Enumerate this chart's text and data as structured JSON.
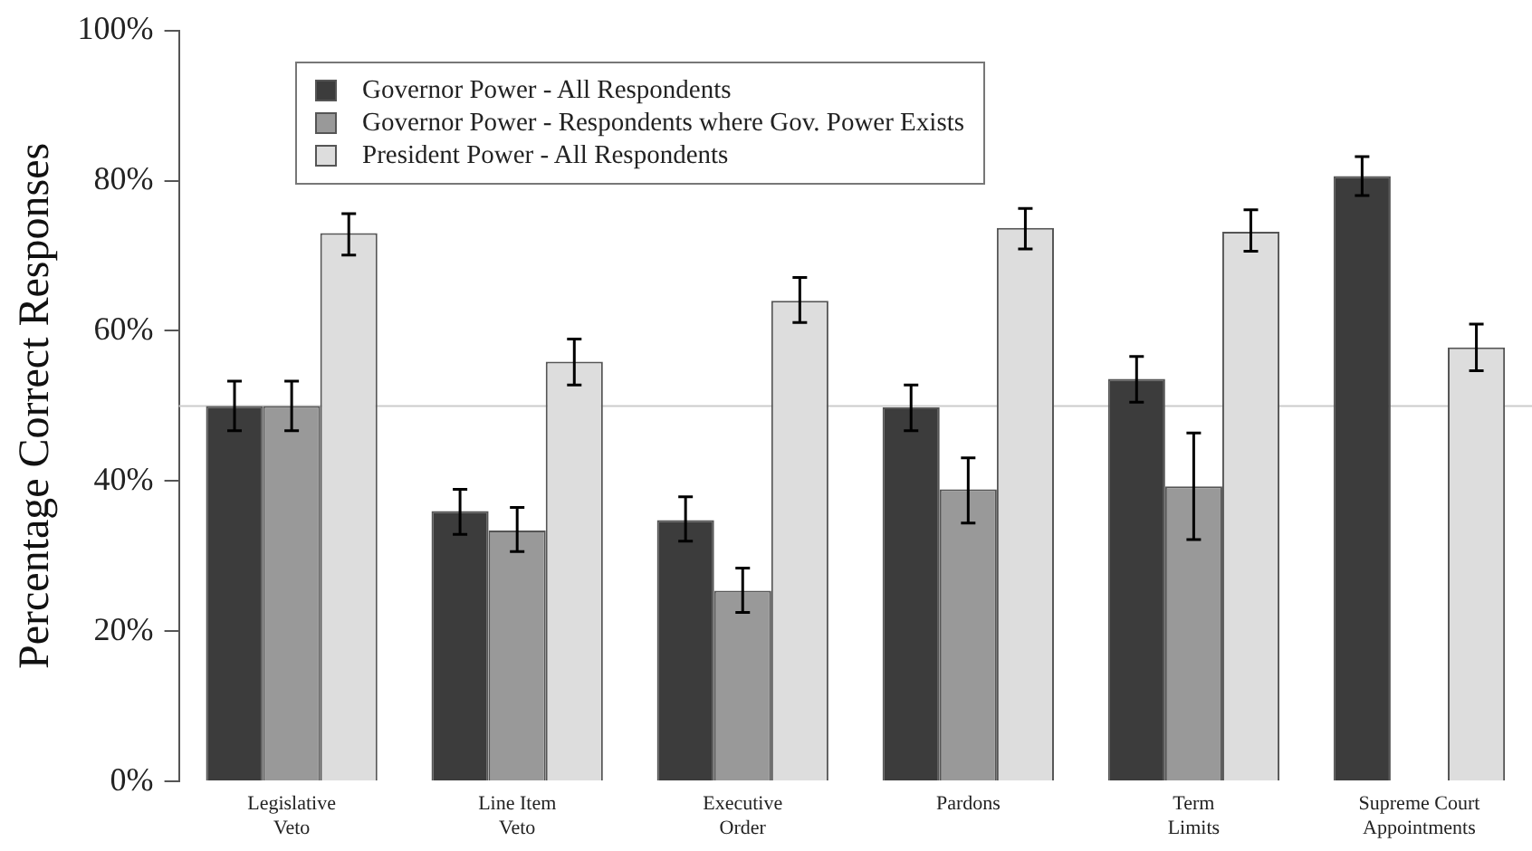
{
  "chart_data": {
    "type": "bar",
    "ylabel": "Percentage Correct Responses",
    "categories": [
      "Legislative Veto",
      "Line Item Veto",
      "Executive Order",
      "Pardons",
      "Term Limits",
      "Supreme Court Appointments"
    ],
    "series": [
      {
        "name": "Governor Power - All Respondents",
        "color": "#3c3c3c",
        "values": [
          50.0,
          36.0,
          34.8,
          49.8,
          53.6,
          80.6
        ],
        "errors": [
          [
            46.7,
            53.3
          ],
          [
            32.9,
            38.9
          ],
          [
            32.0,
            37.9
          ],
          [
            46.7,
            52.8
          ],
          [
            50.5,
            56.6
          ],
          [
            78.0,
            83.2
          ]
        ]
      },
      {
        "name": "Governor Power - Respondents where Gov. Power Exists",
        "color": "#999999",
        "values": [
          50.0,
          33.4,
          25.4,
          38.9,
          39.3,
          null
        ],
        "errors": [
          [
            46.7,
            53.3
          ],
          [
            30.6,
            36.5
          ],
          [
            22.5,
            28.4
          ],
          [
            34.4,
            43.1
          ],
          [
            32.2,
            46.4
          ],
          null
        ]
      },
      {
        "name": "President Power - All Respondents",
        "color": "#dddddd",
        "values": [
          73.0,
          55.9,
          64.0,
          73.7,
          73.2,
          57.8
        ],
        "errors": [
          [
            70.1,
            75.6
          ],
          [
            52.8,
            58.9
          ],
          [
            61.1,
            67.1
          ],
          [
            70.9,
            76.3
          ],
          [
            70.6,
            76.1
          ],
          [
            54.7,
            60.9
          ]
        ]
      }
    ],
    "ylim": [
      0,
      100
    ],
    "yticks": [
      {
        "value": 0,
        "label": "0%"
      },
      {
        "value": 20,
        "label": "20%"
      },
      {
        "value": 40,
        "label": "40%"
      },
      {
        "value": 60,
        "label": "60%"
      },
      {
        "value": 80,
        "label": "80%"
      },
      {
        "value": 100,
        "label": "100%"
      }
    ],
    "ref_lines": [
      {
        "axis": "y",
        "value": 50,
        "color": "#cccccc"
      }
    ],
    "grid": false,
    "legend": "top"
  }
}
